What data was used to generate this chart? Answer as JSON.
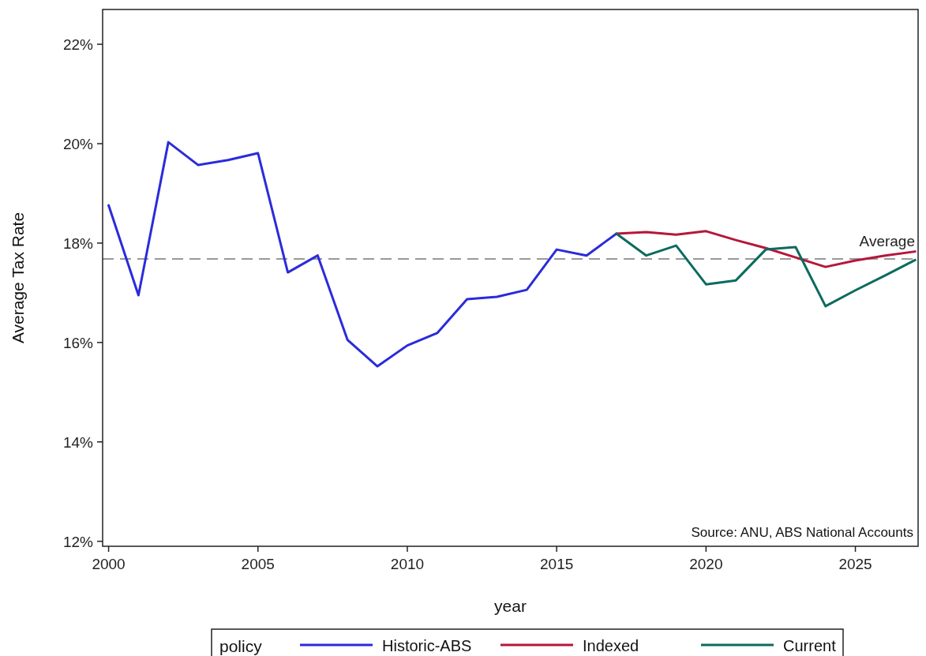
{
  "chart_data": {
    "type": "line",
    "xlabel": "year",
    "ylabel": "Average Tax Rate",
    "legend_title": "policy",
    "xlim": [
      1999.8,
      2027.1
    ],
    "xticks": [
      2000,
      2005,
      2010,
      2015,
      2020,
      2025
    ],
    "ylim": [
      11.9,
      22.7
    ],
    "yticks": [
      {
        "value": 12,
        "label": "12%"
      },
      {
        "value": 14,
        "label": "14%"
      },
      {
        "value": 16,
        "label": "16%"
      },
      {
        "value": 18,
        "label": "18%"
      },
      {
        "value": 20,
        "label": "20%"
      },
      {
        "value": 22,
        "label": "22%"
      }
    ],
    "series": [
      {
        "name": "Historic-ABS",
        "color": "#2b2bdb",
        "x": [
          2000,
          2001,
          2002,
          2003,
          2004,
          2005,
          2006,
          2007,
          2008,
          2009,
          2010,
          2011,
          2012,
          2013,
          2014,
          2015,
          2016,
          2017
        ],
        "values": [
          18.76,
          16.95,
          20.03,
          19.57,
          19.67,
          19.81,
          17.41,
          17.75,
          16.05,
          15.52,
          15.94,
          16.19,
          16.87,
          16.92,
          17.06,
          17.87,
          17.75,
          18.19
        ]
      },
      {
        "name": "Indexed",
        "color": "#b5173a",
        "x": [
          2017,
          2018,
          2019,
          2020,
          2021,
          2022,
          2023,
          2024,
          2025,
          2026,
          2027
        ],
        "values": [
          18.19,
          18.22,
          18.17,
          18.24,
          18.06,
          17.9,
          17.71,
          17.52,
          17.65,
          17.75,
          17.83
        ]
      },
      {
        "name": "Current",
        "color": "#0b6b5f",
        "x": [
          2017,
          2018,
          2019,
          2020,
          2021,
          2022,
          2023,
          2024,
          2025,
          2026,
          2027
        ],
        "values": [
          18.19,
          17.75,
          17.95,
          17.17,
          17.25,
          17.87,
          17.92,
          16.73,
          17.05,
          17.35,
          17.66
        ]
      }
    ],
    "ref_lines": [
      {
        "axis": "y",
        "value": 17.68,
        "label": "Average",
        "color": "#999999",
        "line_style": "dashed"
      }
    ],
    "annotations": [
      "Source: ANU, ABS National Accounts"
    ],
    "legend": "bottom",
    "grid": false,
    "marker": "none",
    "line_style": "solid"
  }
}
